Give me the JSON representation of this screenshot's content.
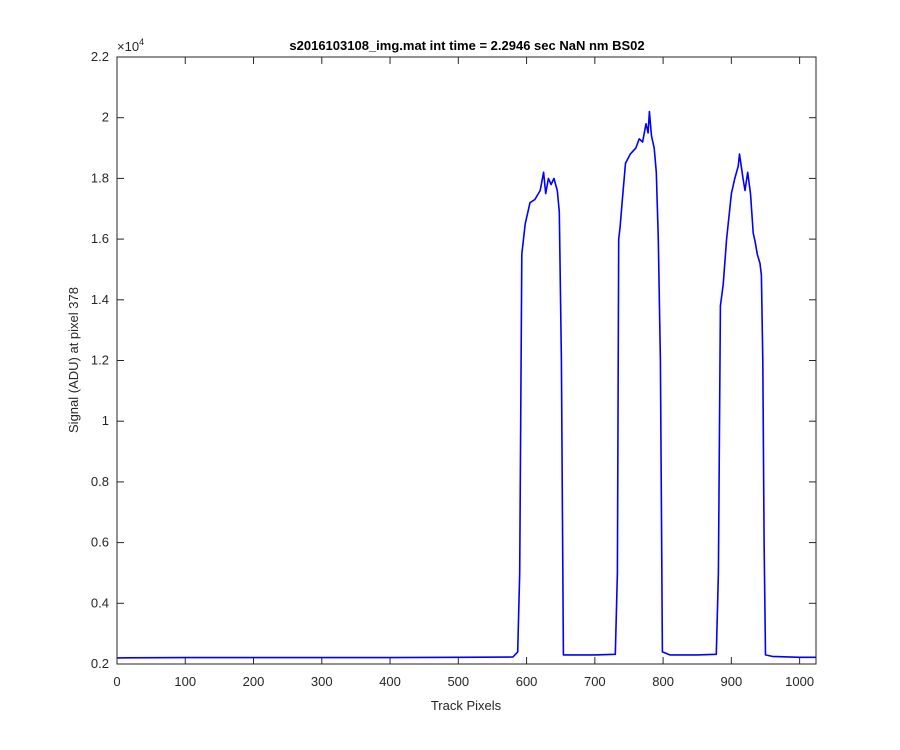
{
  "chart_data": {
    "type": "line",
    "title": "s2016103108_img.mat int time = 2.2946 sec  NaN nm BS02",
    "xlabel": "Track Pixels",
    "ylabel": "Signal (ADU) at pixel 378",
    "exponent_label": "×10",
    "exponent_power": "4",
    "xlim": [
      0,
      1024
    ],
    "ylim": [
      0.2,
      2.2
    ],
    "y_scale_factor": 10000,
    "xticks": [
      0,
      100,
      200,
      300,
      400,
      500,
      600,
      700,
      800,
      900,
      1000
    ],
    "xtick_labels": [
      "0",
      "100",
      "200",
      "300",
      "400",
      "500",
      "600",
      "700",
      "800",
      "900",
      "1000"
    ],
    "yticks": [
      0.2,
      0.4,
      0.6,
      0.8,
      1.0,
      1.2,
      1.4,
      1.6,
      1.8,
      2.0,
      2.2
    ],
    "ytick_labels": [
      "0.2",
      "0.4",
      "0.6",
      "0.8",
      "1",
      "1.2",
      "1.4",
      "1.6",
      "1.8",
      "2",
      "2.2"
    ],
    "grid": false,
    "series": [
      {
        "color": "#0000ff",
        "x": [
          0,
          100,
          200,
          300,
          400,
          500,
          580,
          587,
          590,
          593,
          598,
          605,
          612,
          620,
          625,
          628,
          632,
          636,
          640,
          645,
          648,
          651,
          654,
          660,
          700,
          730,
          733,
          735,
          737,
          740,
          745,
          752,
          760,
          765,
          770,
          775,
          778,
          780,
          783,
          787,
          790,
          793,
          796,
          799,
          810,
          850,
          878,
          881,
          884,
          888,
          893,
          900,
          905,
          910,
          912,
          917,
          920,
          924,
          928,
          932,
          935,
          938,
          942,
          944,
          946,
          948,
          950,
          960,
          1000,
          1024
        ],
        "y": [
          0.22,
          0.221,
          0.221,
          0.221,
          0.221,
          0.222,
          0.223,
          0.24,
          0.5,
          1.55,
          1.65,
          1.72,
          1.73,
          1.76,
          1.82,
          1.75,
          1.8,
          1.78,
          1.8,
          1.76,
          1.69,
          1.2,
          0.23,
          0.23,
          0.23,
          0.232,
          0.5,
          1.6,
          1.64,
          1.72,
          1.85,
          1.88,
          1.9,
          1.93,
          1.92,
          1.98,
          1.95,
          2.02,
          1.94,
          1.9,
          1.82,
          1.6,
          1.2,
          0.24,
          0.23,
          0.23,
          0.232,
          0.5,
          1.38,
          1.45,
          1.6,
          1.75,
          1.8,
          1.84,
          1.88,
          1.8,
          1.76,
          1.82,
          1.75,
          1.62,
          1.59,
          1.55,
          1.52,
          1.48,
          1.2,
          0.6,
          0.23,
          0.225,
          0.222,
          0.222
        ]
      }
    ]
  }
}
